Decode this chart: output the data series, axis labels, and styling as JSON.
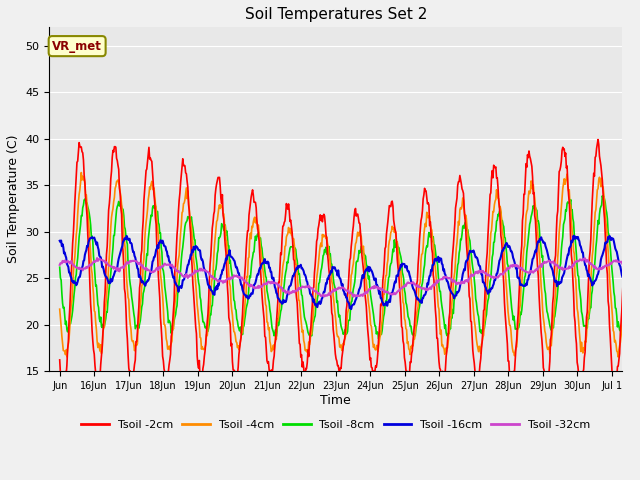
{
  "title": "Soil Temperatures Set 2",
  "xlabel": "Time",
  "ylabel": "Soil Temperature (C)",
  "ylim": [
    15,
    52
  ],
  "yticks": [
    15,
    20,
    25,
    30,
    35,
    40,
    45,
    50
  ],
  "annotation": "VR_met",
  "fig_bg": "#f0f0f0",
  "plot_bg": "#e8e8e8",
  "lines": {
    "Tsoil -2cm": {
      "color": "#ff0000",
      "lw": 1.2
    },
    "Tsoil -4cm": {
      "color": "#ff8c00",
      "lw": 1.2
    },
    "Tsoil -8cm": {
      "color": "#00dd00",
      "lw": 1.2
    },
    "Tsoil -16cm": {
      "color": "#0000dd",
      "lw": 1.5
    },
    "Tsoil -32cm": {
      "color": "#cc44cc",
      "lw": 1.5
    }
  },
  "n_days": 17,
  "start_day": 15,
  "pts_per_day": 48
}
